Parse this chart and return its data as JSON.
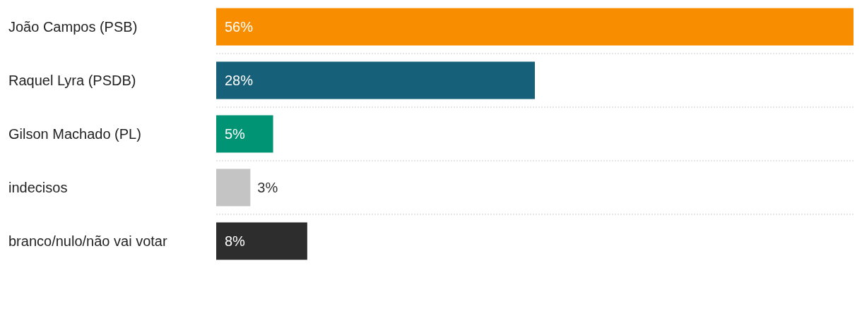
{
  "chart_data": {
    "type": "bar",
    "orientation": "horizontal",
    "categories": [
      "João Campos (PSB)",
      "Raquel Lyra (PSDB)",
      "Gilson Machado (PL)",
      "indecisos",
      "branco/nulo/não vai votar"
    ],
    "values": [
      56,
      28,
      5,
      3,
      8
    ],
    "colors": [
      "#f98d00",
      "#17607a",
      "#009474",
      "#c4c4c4",
      "#2d2d2d"
    ],
    "value_labels": [
      "56%",
      "28%",
      "5%",
      "3%",
      "8%"
    ],
    "grid": "y"
  }
}
